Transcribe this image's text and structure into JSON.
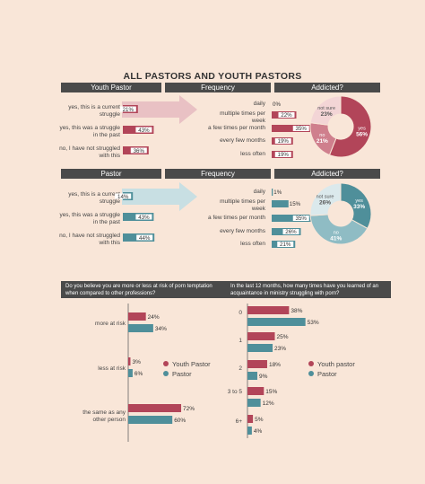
{
  "title": "ALL PASTORS AND YOUTH PASTORS",
  "colors": {
    "youth": "#b24559",
    "pastor": "#4f8f9a",
    "youth_light": "#e9c1c4",
    "pastor_light": "#c8dfe3",
    "header": "#4a4a4a",
    "background": "#f9e6d8"
  },
  "headers": {
    "youth_pastor": "Youth Pastor",
    "pastor": "Pastor",
    "frequency": "Frequency",
    "addicted": "Addicted?"
  },
  "struggle_labels": [
    "yes, this is a current struggle",
    "yes, this was a struggle in the past",
    "no, I have not struggled with this"
  ],
  "frequency_labels": [
    "daily",
    "multiple times per week",
    "a few times per month",
    "every few months",
    "less often"
  ],
  "addicted_labels": {
    "yes": "yes",
    "no": "no",
    "not_sure": "not sure"
  },
  "q1_text": "Do you believe you are more or less at risk of porn temptation when compared to other professions?",
  "q2_text": "In the last 12 months, how many times have you learned of an acquaintance in ministry struggling with porn?",
  "legend": {
    "youth": "Youth Pastor",
    "pastor": "Pastor",
    "youth_q2": "Youth pastor",
    "pastor_q2": "Pastor"
  },
  "chart_data": [
    {
      "type": "bar",
      "categories": [
        "yes, this is a current struggle",
        "yes, this was a struggle in the past",
        "no, I have not struggled with this"
      ],
      "series": [
        {
          "name": "Youth Pastor",
          "values": [
            21,
            43,
            36
          ]
        }
      ],
      "unit": "%"
    },
    {
      "type": "bar",
      "categories": [
        "daily",
        "multiple times per week",
        "a few times per month",
        "every few months",
        "less often"
      ],
      "series": [
        {
          "name": "Youth Pastor",
          "values": [
            0,
            22,
            35,
            19,
            19
          ]
        }
      ],
      "unit": "%"
    },
    {
      "type": "pie",
      "categories": [
        "yes",
        "no",
        "not sure"
      ],
      "series": [
        {
          "name": "Youth Pastor",
          "values": [
            56,
            21,
            23
          ]
        }
      ],
      "unit": "%"
    },
    {
      "type": "bar",
      "categories": [
        "yes, this is a current struggle",
        "yes, this was a struggle in the past",
        "no, I have not struggled with this"
      ],
      "series": [
        {
          "name": "Pastor",
          "values": [
            14,
            43,
            44
          ]
        }
      ],
      "unit": "%"
    },
    {
      "type": "bar",
      "categories": [
        "daily",
        "multiple times per week",
        "a few times per month",
        "every few months",
        "less often"
      ],
      "series": [
        {
          "name": "Pastor",
          "values": [
            1,
            15,
            35,
            26,
            21
          ]
        }
      ],
      "unit": "%"
    },
    {
      "type": "pie",
      "categories": [
        "yes",
        "no",
        "not sure"
      ],
      "series": [
        {
          "name": "Pastor",
          "values": [
            33,
            41,
            26
          ]
        }
      ],
      "unit": "%"
    },
    {
      "type": "bar",
      "title": "Do you believe you are more or less at risk of porn temptation when compared to other professions?",
      "categories": [
        "more at risk",
        "less at risk",
        "the same as any other person"
      ],
      "series": [
        {
          "name": "Youth Pastor",
          "values": [
            24,
            3,
            72
          ]
        },
        {
          "name": "Pastor",
          "values": [
            34,
            6,
            60
          ]
        }
      ],
      "unit": "%"
    },
    {
      "type": "bar",
      "title": "In the last 12 months, how many times have you learned of an acquaintance in ministry struggling with porn?",
      "categories": [
        "0",
        "1",
        "2",
        "3 to 5",
        "6+"
      ],
      "series": [
        {
          "name": "Youth pastor",
          "values": [
            38,
            25,
            18,
            15,
            5
          ]
        },
        {
          "name": "Pastor",
          "values": [
            53,
            23,
            9,
            12,
            4
          ]
        }
      ],
      "unit": "%"
    }
  ]
}
